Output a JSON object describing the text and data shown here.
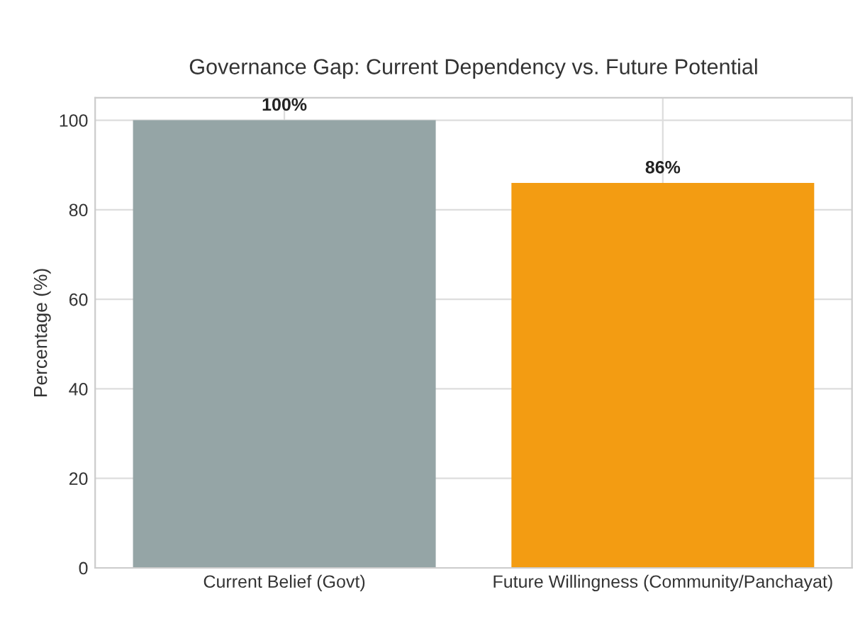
{
  "chart_data": {
    "type": "bar",
    "title": "Governance Gap: Current Dependency vs. Future Potential",
    "ylabel": "Percentage (%)",
    "categories": [
      "Current Belief (Govt)",
      "Future Willingness (Community/Panchayat)"
    ],
    "values": [
      100,
      86
    ],
    "colors": [
      "#95a5a6",
      "#f39c12"
    ],
    "value_labels": [
      "100%",
      "86%"
    ],
    "ylim": [
      0,
      105
    ],
    "yticks": [
      0,
      20,
      40,
      60,
      80,
      100
    ],
    "grid": true
  }
}
